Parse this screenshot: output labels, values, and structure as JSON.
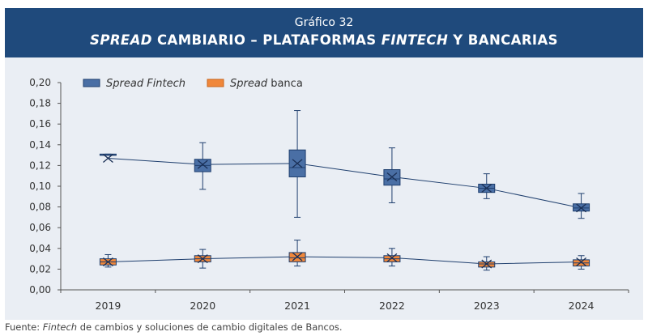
{
  "header": {
    "chart_number": "Gráfico 32",
    "title_parts": [
      {
        "text": "SPREAD",
        "italic": true
      },
      {
        "text": " CAMBIARIO – PLATAFORMAS ",
        "italic": false
      },
      {
        "text": "FINTECH",
        "italic": true
      },
      {
        "text": " Y BANCARIAS",
        "italic": false
      }
    ]
  },
  "source": {
    "prefix": "Fuente: ",
    "italic": "Fintech",
    "rest": " de cambios y soluciones de cambio digitales de Bancos."
  },
  "colors": {
    "header_bg": "#1f4a7c",
    "panel_bg": "#eaeef4",
    "fintech_fill": "#4a6fa5",
    "fintech_line": "#1f3f6e",
    "banca_fill": "#f0873a",
    "banca_line": "#1f3f6e"
  },
  "chart_data": {
    "type": "boxplot",
    "x": [
      "2019",
      "2020",
      "2021",
      "2022",
      "2023",
      "2024"
    ],
    "ylim": [
      0,
      0.2
    ],
    "yticks": [
      0,
      0.02,
      0.04,
      0.06,
      0.08,
      0.1,
      0.12,
      0.14,
      0.16,
      0.18,
      0.2
    ],
    "ytick_labels": [
      "0,00",
      "0,02",
      "0,04",
      "0,06",
      "0,08",
      "0,10",
      "0,12",
      "0,14",
      "0,16",
      "0,18",
      "0,20"
    ],
    "grid": false,
    "legend_position": "top-left",
    "series": [
      {
        "name_parts": [
          {
            "text": "Spread",
            "italic": true
          },
          {
            "text": " Fintech",
            "italic": true
          }
        ],
        "color": "#4a6fa5",
        "boxes": [
          {
            "min": 0.13,
            "q1": 0.13,
            "median": 0.13,
            "q3": 0.131,
            "max": 0.131
          },
          {
            "min": 0.097,
            "q1": 0.114,
            "median": 0.12,
            "q3": 0.126,
            "max": 0.142
          },
          {
            "min": 0.07,
            "q1": 0.109,
            "median": 0.118,
            "q3": 0.135,
            "max": 0.173
          },
          {
            "min": 0.084,
            "q1": 0.101,
            "median": 0.107,
            "q3": 0.116,
            "max": 0.137
          },
          {
            "min": 0.088,
            "q1": 0.094,
            "median": 0.098,
            "q3": 0.102,
            "max": 0.112
          },
          {
            "min": 0.069,
            "q1": 0.076,
            "median": 0.079,
            "q3": 0.083,
            "max": 0.093
          }
        ],
        "means": [
          0.127,
          0.121,
          0.122,
          0.109,
          0.098,
          0.079
        ]
      },
      {
        "name_parts": [
          {
            "text": "Spread",
            "italic": true
          },
          {
            "text": " banca",
            "italic": false
          }
        ],
        "color": "#f0873a",
        "boxes": [
          {
            "min": 0.022,
            "q1": 0.024,
            "median": 0.027,
            "q3": 0.03,
            "max": 0.034
          },
          {
            "min": 0.021,
            "q1": 0.027,
            "median": 0.03,
            "q3": 0.033,
            "max": 0.039
          },
          {
            "min": 0.023,
            "q1": 0.027,
            "median": 0.031,
            "q3": 0.036,
            "max": 0.048
          },
          {
            "min": 0.023,
            "q1": 0.027,
            "median": 0.03,
            "q3": 0.033,
            "max": 0.04
          },
          {
            "min": 0.019,
            "q1": 0.022,
            "median": 0.025,
            "q3": 0.027,
            "max": 0.032
          },
          {
            "min": 0.02,
            "q1": 0.023,
            "median": 0.026,
            "q3": 0.029,
            "max": 0.033
          }
        ],
        "means": [
          0.027,
          0.03,
          0.032,
          0.031,
          0.025,
          0.027
        ]
      }
    ]
  }
}
